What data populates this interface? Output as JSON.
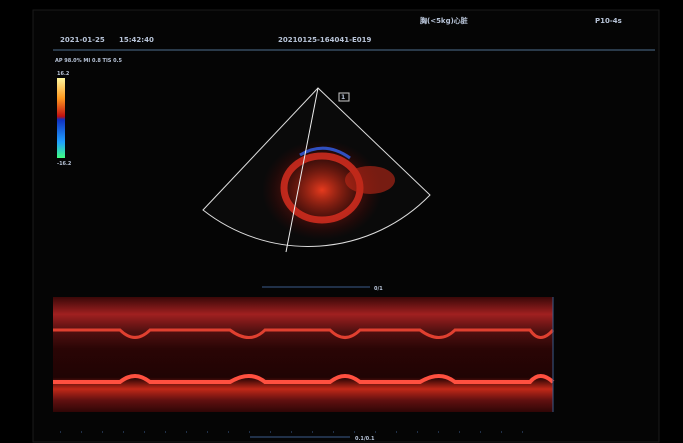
{
  "header": {
    "date": "2021-01-25",
    "time": "15:42:40",
    "exam_id": "20210125-164041-E019",
    "preset": "胸(<5kg)心脏",
    "probe": "P10-4s"
  },
  "info": {
    "params": "AP 98.0% MI 0.8 TIS 0.5"
  },
  "color_scale": {
    "max": "16.2",
    "min": "-16.2"
  },
  "sector": {
    "marker": "1"
  },
  "scales": {
    "sector_scale": "0/1",
    "mmode_scale": "0.1/0.1"
  }
}
